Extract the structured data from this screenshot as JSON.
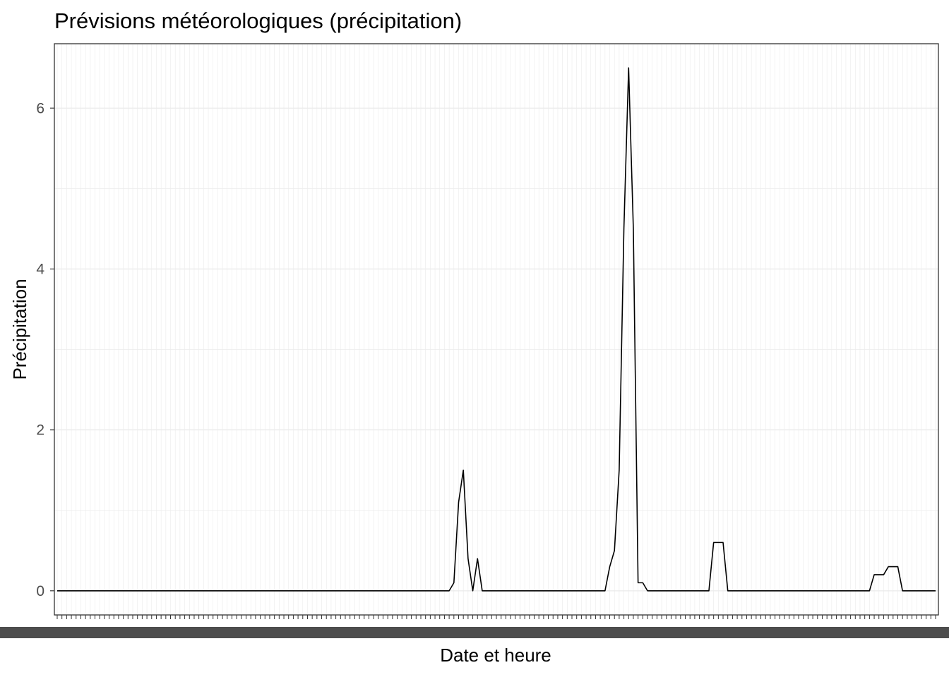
{
  "chart_data": {
    "type": "line",
    "title": "Prévisions météorologiques (précipitation)",
    "xlabel": "Date et heure",
    "ylabel": "Précipitation",
    "ylim": [
      -0.3,
      6.8
    ],
    "yticks": [
      0,
      2,
      4,
      6
    ],
    "grid": true,
    "legend": "none",
    "line_color": "#000000",
    "x_tick_labels_legible": false,
    "series": [
      {
        "values": [
          0,
          0,
          0,
          0,
          0,
          0,
          0,
          0,
          0,
          0,
          0,
          0,
          0,
          0,
          0,
          0,
          0,
          0,
          0,
          0,
          0,
          0,
          0,
          0,
          0,
          0,
          0,
          0,
          0,
          0,
          0,
          0,
          0,
          0,
          0,
          0,
          0,
          0,
          0,
          0,
          0,
          0,
          0,
          0,
          0,
          0,
          0,
          0,
          0,
          0,
          0,
          0,
          0,
          0,
          0,
          0,
          0,
          0,
          0,
          0,
          0,
          0,
          0,
          0,
          0,
          0,
          0,
          0,
          0,
          0,
          0,
          0,
          0,
          0,
          0,
          0,
          0,
          0,
          0,
          0,
          0,
          0,
          0,
          0,
          0.1,
          1.1,
          1.5,
          0.4,
          0,
          0.4,
          0,
          0,
          0,
          0,
          0,
          0,
          0,
          0,
          0,
          0,
          0,
          0,
          0,
          0,
          0,
          0,
          0,
          0,
          0,
          0,
          0,
          0,
          0,
          0,
          0,
          0,
          0,
          0.3,
          0.5,
          1.5,
          4.5,
          6.5,
          4.5,
          0.1,
          0.1,
          0,
          0,
          0,
          0,
          0,
          0,
          0,
          0,
          0,
          0,
          0,
          0,
          0,
          0,
          0.6,
          0.6,
          0.6,
          0,
          0,
          0,
          0,
          0,
          0,
          0,
          0,
          0,
          0,
          0,
          0,
          0,
          0,
          0,
          0,
          0,
          0,
          0,
          0,
          0,
          0,
          0,
          0,
          0,
          0,
          0,
          0,
          0,
          0,
          0,
          0.2,
          0.2,
          0.2,
          0.3,
          0.3,
          0.3,
          0,
          0,
          0,
          0,
          0,
          0,
          0,
          0
        ]
      }
    ]
  }
}
